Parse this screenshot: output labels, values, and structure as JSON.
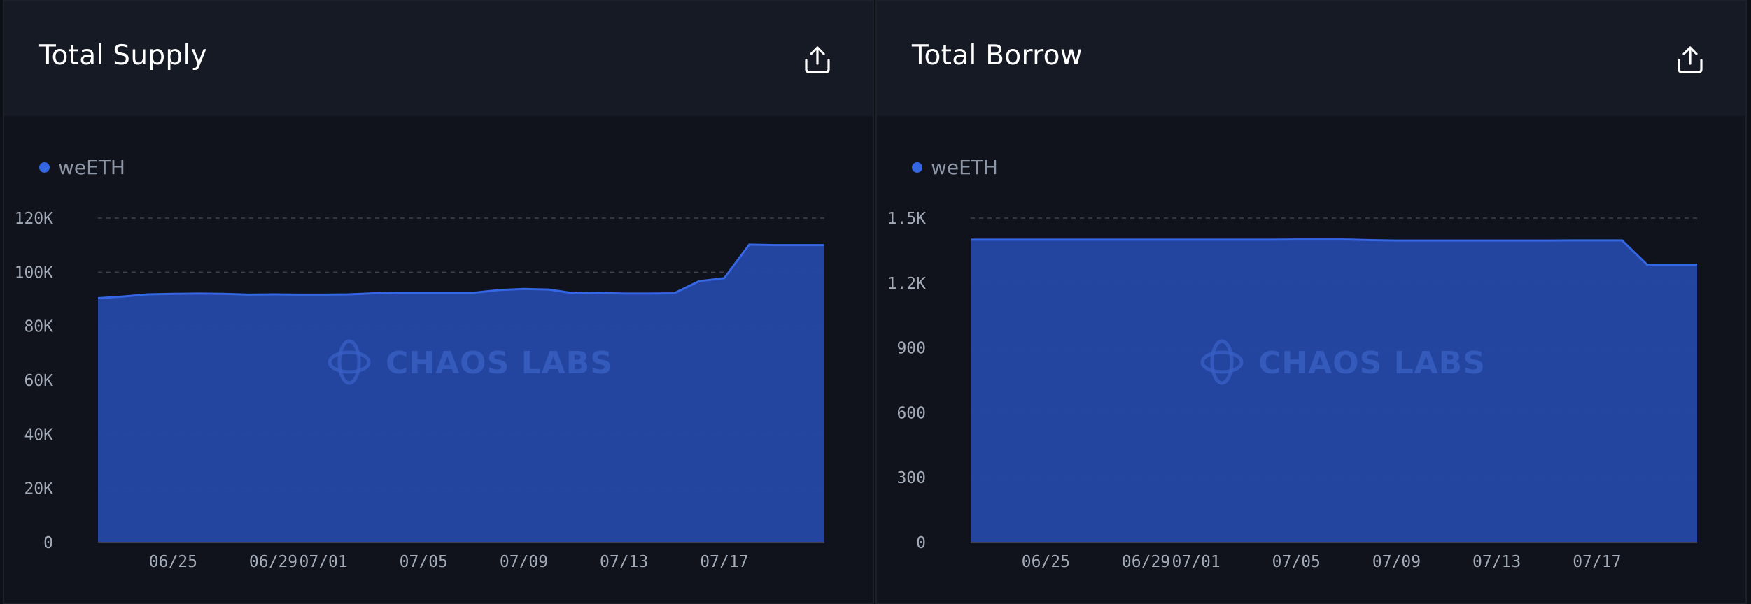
{
  "panels": [
    {
      "title": "Total Supply",
      "legend": "weETH",
      "icon": "share-export-icon"
    },
    {
      "title": "Total Borrow",
      "legend": "weETH",
      "icon": "share-export-icon"
    }
  ],
  "watermark": "CHAOS LABS",
  "colors": {
    "series": "#2447a4",
    "series_line": "#3566e3",
    "legend_dot": "#3566e3",
    "grid": "#3a4252",
    "background": "#10131b",
    "header": "#151a25"
  },
  "chart_data": [
    {
      "type": "area",
      "title": "Total Supply",
      "xlabel": "",
      "ylabel": "",
      "ylim": [
        0,
        120000
      ],
      "y_ticks": [
        {
          "value": 0,
          "label": "0"
        },
        {
          "value": 20000,
          "label": "20K"
        },
        {
          "value": 40000,
          "label": "40K"
        },
        {
          "value": 60000,
          "label": "60K"
        },
        {
          "value": 80000,
          "label": "80K"
        },
        {
          "value": 100000,
          "label": "100K"
        },
        {
          "value": 120000,
          "label": "120K"
        }
      ],
      "x_range": [
        "06/22",
        "07/21"
      ],
      "x_ticks": [
        "06/25",
        "06/29",
        "07/01",
        "07/05",
        "07/09",
        "07/13",
        "07/17"
      ],
      "grid": true,
      "legend_position": "top-left",
      "series": [
        {
          "name": "weETH",
          "x": [
            "06/22",
            "06/23",
            "06/24",
            "06/25",
            "06/26",
            "06/27",
            "06/28",
            "06/29",
            "06/30",
            "07/01",
            "07/02",
            "07/03",
            "07/04",
            "07/05",
            "07/06",
            "07/07",
            "07/08",
            "07/09",
            "07/10",
            "07/11",
            "07/12",
            "07/13",
            "07/14",
            "07/15",
            "07/16",
            "07/17",
            "07/18",
            "07/19",
            "07/20",
            "07/21"
          ],
          "values": [
            90400,
            91000,
            91800,
            92000,
            92100,
            92000,
            91700,
            91800,
            91700,
            91700,
            91800,
            92200,
            92400,
            92400,
            92400,
            92400,
            93400,
            93800,
            93600,
            92200,
            92400,
            92100,
            92100,
            92200,
            96700,
            97800,
            110200,
            110000,
            110000,
            110000
          ]
        }
      ]
    },
    {
      "type": "area",
      "title": "Total Borrow",
      "xlabel": "",
      "ylabel": "",
      "ylim": [
        0,
        1500
      ],
      "y_ticks": [
        {
          "value": 0,
          "label": "0"
        },
        {
          "value": 300,
          "label": "300"
        },
        {
          "value": 600,
          "label": "600"
        },
        {
          "value": 900,
          "label": "900"
        },
        {
          "value": 1200,
          "label": "1.2K"
        },
        {
          "value": 1500,
          "label": "1.5K"
        }
      ],
      "x_range": [
        "06/22",
        "07/21"
      ],
      "x_ticks": [
        "06/25",
        "06/29",
        "07/01",
        "07/05",
        "07/09",
        "07/13",
        "07/17"
      ],
      "grid": true,
      "legend_position": "top-left",
      "series": [
        {
          "name": "weETH",
          "x": [
            "06/22",
            "06/23",
            "06/24",
            "06/25",
            "06/26",
            "06/27",
            "06/28",
            "06/29",
            "06/30",
            "07/01",
            "07/02",
            "07/03",
            "07/04",
            "07/05",
            "07/06",
            "07/07",
            "07/08",
            "07/09",
            "07/10",
            "07/11",
            "07/12",
            "07/13",
            "07/14",
            "07/15",
            "07/16",
            "07/17",
            "07/18",
            "07/19",
            "07/20",
            "07/21"
          ],
          "values": [
            1400,
            1400,
            1400,
            1400,
            1400,
            1400,
            1400,
            1400,
            1400,
            1400,
            1400,
            1400,
            1400,
            1401,
            1401,
            1401,
            1398,
            1396,
            1396,
            1396,
            1396,
            1396,
            1396,
            1396,
            1397,
            1397,
            1397,
            1285,
            1285,
            1285
          ]
        }
      ]
    }
  ]
}
